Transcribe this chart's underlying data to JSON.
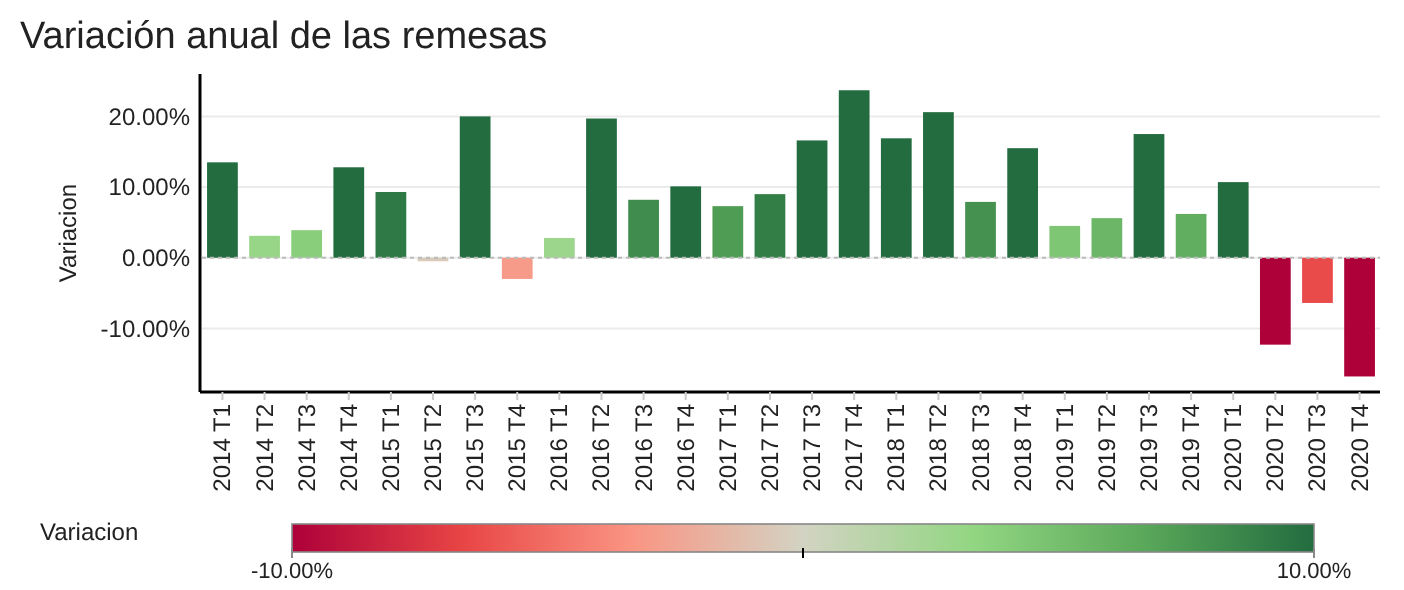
{
  "chart_data": {
    "type": "bar",
    "title": "Variación anual de las remesas",
    "ylabel": "Variacion",
    "clabel": "Variacion",
    "categories": [
      "2014 T1",
      "2014 T2",
      "2014 T3",
      "2014 T4",
      "2015 T1",
      "2015 T2",
      "2015 T3",
      "2015 T4",
      "2016 T1",
      "2016 T2",
      "2016 T3",
      "2016 T4",
      "2017 T1",
      "2017 T2",
      "2017 T3",
      "2017 T4",
      "2018 T1",
      "2018 T2",
      "2018 T3",
      "2018 T4",
      "2019 T1",
      "2019 T2",
      "2019 T3",
      "2019 T4",
      "2020 T1",
      "2020 T2",
      "2020 T3",
      "2020 T4"
    ],
    "values": [
      13.5,
      3.1,
      3.9,
      12.8,
      9.3,
      -0.5,
      20.0,
      -3.0,
      2.8,
      19.7,
      8.2,
      10.1,
      7.3,
      9.0,
      16.6,
      23.7,
      16.9,
      20.6,
      7.9,
      15.5,
      4.5,
      5.6,
      17.5,
      6.2,
      10.7,
      -12.3,
      -6.4,
      -16.8
    ],
    "ylim": [
      -19,
      26
    ],
    "yticks": [
      {
        "value": -10,
        "label": "-10.00%"
      },
      {
        "value": 0,
        "label": "0.00%"
      },
      {
        "value": 10,
        "label": "10.00%"
      },
      {
        "value": 20,
        "label": "20.00%"
      }
    ],
    "clim": [
      -10,
      10
    ],
    "cticks": [
      {
        "value": -10,
        "label": "-10.00%"
      },
      {
        "value": 0,
        "label": null
      },
      {
        "value": 10,
        "label": "10.00%"
      }
    ],
    "ref_lines": [
      {
        "axis": "y",
        "value": 0,
        "color": "#bbbbbb",
        "line_style": "dotted"
      }
    ],
    "grid": "y"
  }
}
